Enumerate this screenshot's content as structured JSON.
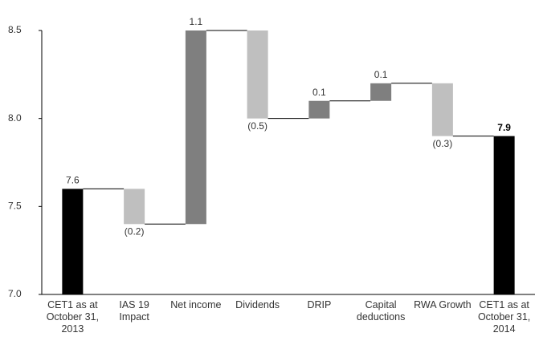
{
  "chart_data": {
    "type": "waterfall",
    "categories": [
      "CET1 as at October 31, 2013",
      "IAS 19 Impact",
      "Net income",
      "Dividends",
      "DRIP",
      "Capital deductions",
      "RWA Growth",
      "CET1 as at October 31, 2014"
    ],
    "values": [
      7.6,
      -0.2,
      1.1,
      -0.5,
      0.1,
      0.1,
      -0.3,
      7.9
    ],
    "value_labels": [
      "7.6",
      "(0.2)",
      "1.1",
      "(0.5)",
      "0.1",
      "0.1",
      "(0.3)",
      "7.9"
    ],
    "totals": [
      true,
      false,
      false,
      false,
      false,
      false,
      false,
      true
    ],
    "colors": {
      "total": "#000000",
      "increase": "#7f7f7f",
      "decrease": "#bfbfbf"
    },
    "ylim": [
      7.0,
      8.5
    ],
    "yticks": [
      {
        "value": 7.0,
        "label": "7.0"
      },
      7.5,
      {
        "value": 8.0,
        "label": "8.0"
      },
      8.5
    ]
  }
}
